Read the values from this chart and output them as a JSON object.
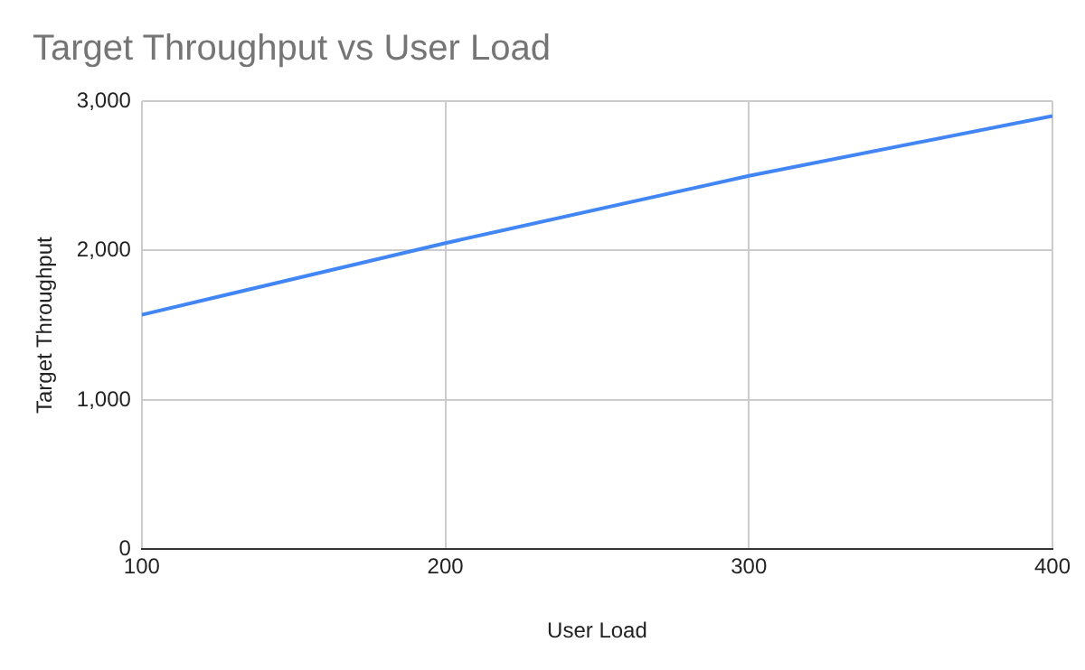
{
  "chart_data": {
    "type": "line",
    "title": "Target Throughput vs User Load",
    "xlabel": "User Load",
    "ylabel": "Target Throughput",
    "x": [
      100,
      200,
      300,
      400
    ],
    "series": [
      {
        "color": "#4285f4",
        "values": [
          1570,
          2050,
          2500,
          2900
        ]
      }
    ],
    "xlim": [
      100,
      400
    ],
    "xticks": [
      100,
      200,
      300,
      400
    ],
    "ylim": [
      0,
      3000
    ],
    "yticks": [
      0,
      {
        "value": 1000,
        "label": "1,000"
      },
      {
        "value": 2000,
        "label": "2,000"
      },
      {
        "value": 3000,
        "label": "3,000"
      }
    ],
    "grid": true,
    "marker": "none",
    "line_style": "solid"
  }
}
